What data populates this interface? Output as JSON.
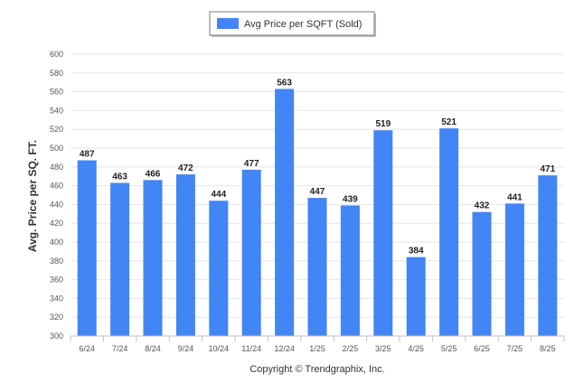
{
  "chart_data": {
    "type": "bar",
    "categories": [
      "6/24",
      "7/24",
      "8/24",
      "9/24",
      "10/24",
      "11/24",
      "12/24",
      "1/25",
      "2/25",
      "3/25",
      "4/25",
      "5/25",
      "6/25",
      "7/25",
      "8/25"
    ],
    "series": [
      {
        "name": "Avg Price per SQFT (Sold)",
        "values": [
          487,
          463,
          466,
          472,
          444,
          477,
          563,
          447,
          439,
          519,
          384,
          521,
          432,
          441,
          471
        ]
      }
    ],
    "title": "",
    "xlabel": "",
    "ylabel": "Avg. Price per SQ. FT.",
    "ylim": [
      300,
      600
    ],
    "ytick_step": 20,
    "grid": true,
    "legend_position": "top-center",
    "bar_color": "#4285f4",
    "footer": "Copyright © Trendgraphix, Inc."
  }
}
